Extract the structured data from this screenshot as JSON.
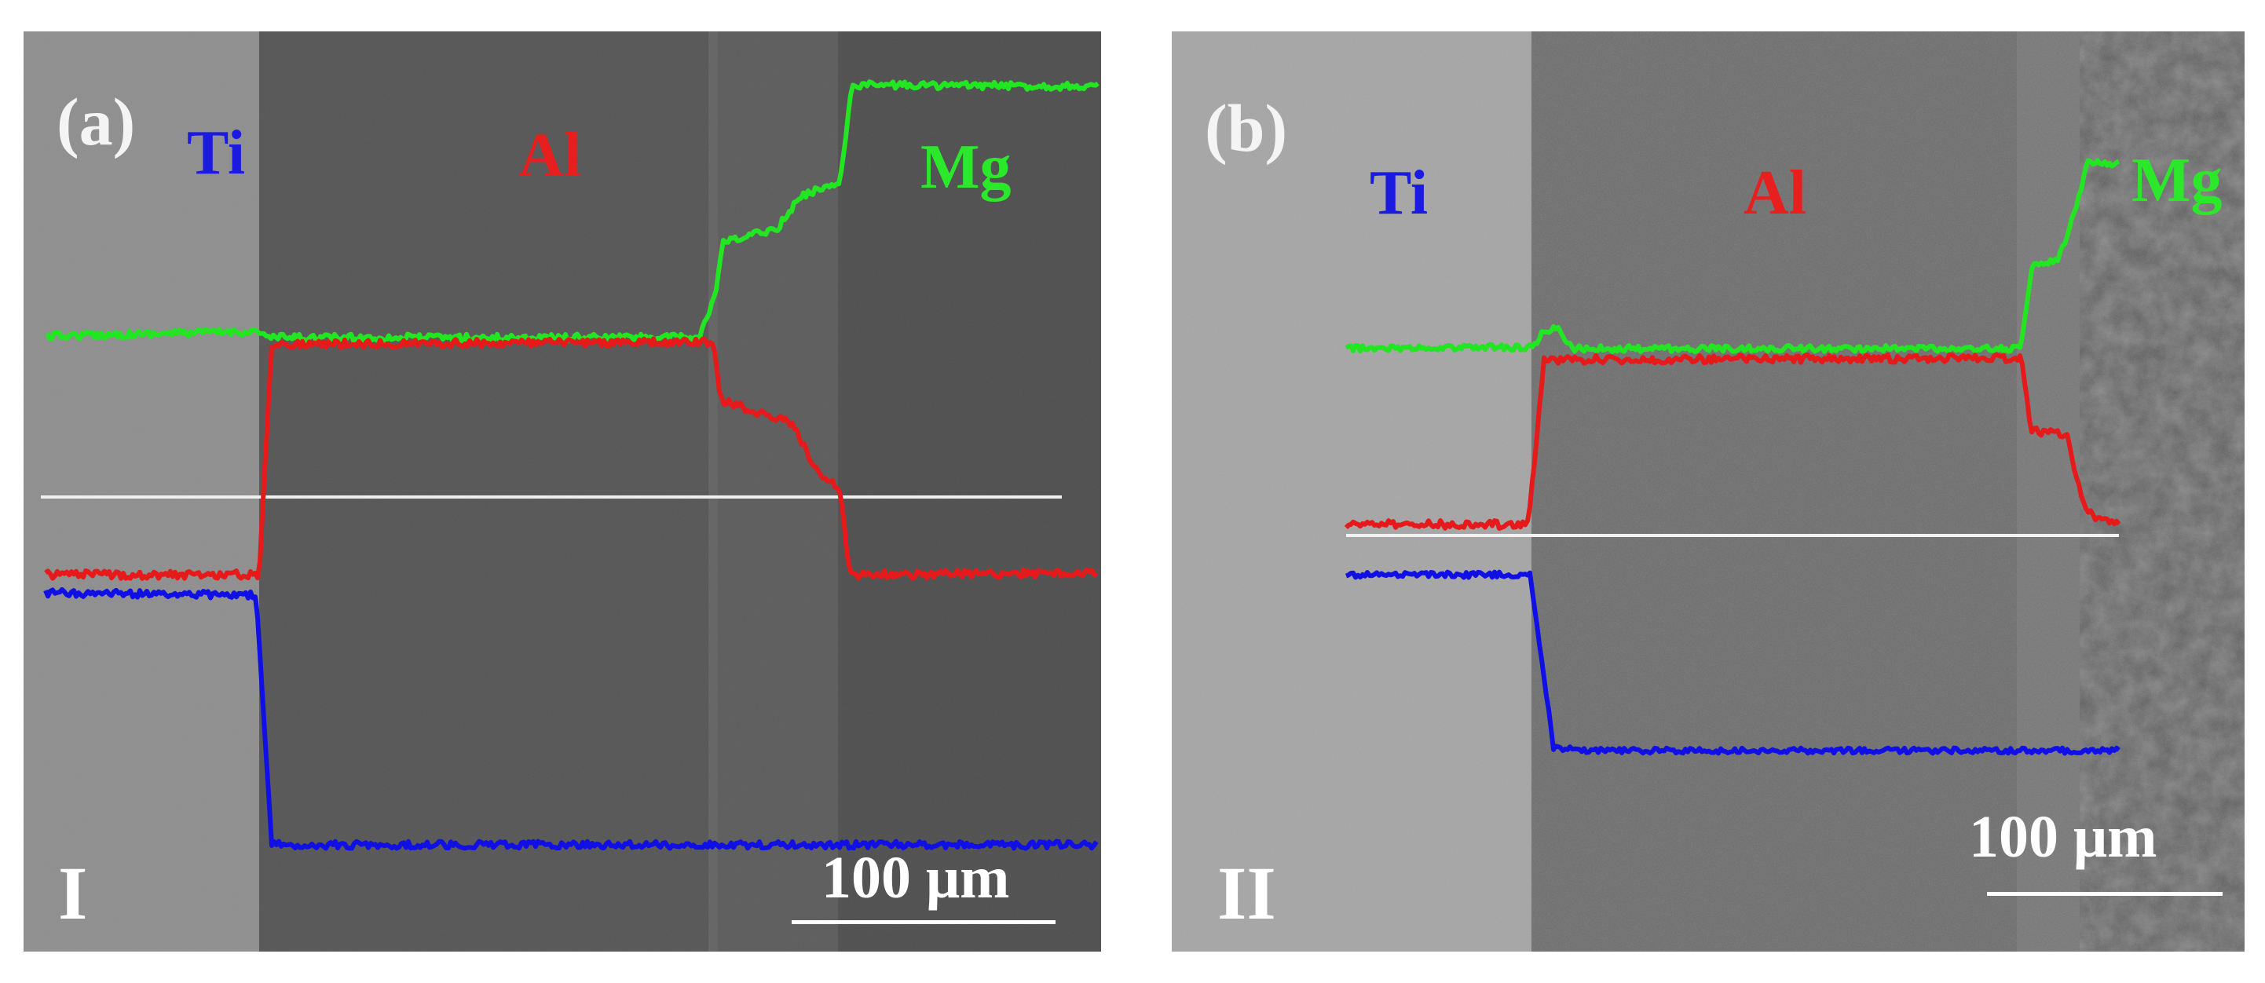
{
  "figure": {
    "panel_a": {
      "panel_label": "(a)",
      "sample_label": "I",
      "elements": {
        "ti": "Ti",
        "al": "Al",
        "mg": "Mg"
      },
      "scale_bar": "100 μm"
    },
    "panel_b": {
      "panel_label": "(b)",
      "sample_label": "II",
      "elements": {
        "ti": "Ti",
        "al": "Al",
        "mg": "Mg"
      },
      "scale_bar": "100 μm"
    },
    "colors": {
      "ti": "#1010e6",
      "al": "#e61a1a",
      "mg": "#22e622",
      "scan_line": "#f0f0f0"
    }
  }
}
